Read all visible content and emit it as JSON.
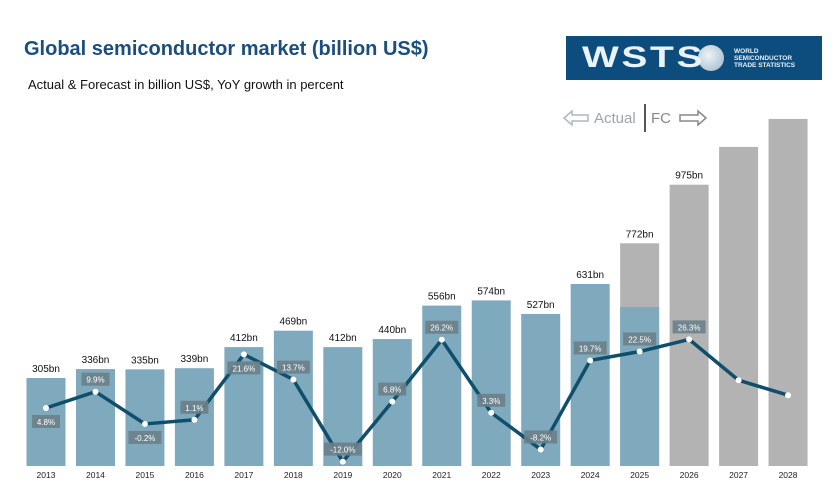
{
  "header": {
    "title": "Global semiconductor market (billion US$)",
    "subtitle": "Actual & Forecast in billion US$, YoY growth in percent"
  },
  "logo": {
    "text": "WSTS",
    "org_lines": [
      "WORLD",
      "SEMICONDUCTOR",
      "TRADE STATISTICS"
    ]
  },
  "legend": {
    "actual": "Actual",
    "forecast": "FC"
  },
  "colors": {
    "actual_bar": "#7fa9bd",
    "forecast_bar": "#b3b3b3",
    "growth_line": "#0f4f6b",
    "growth_label_bg": "#6b7f8a"
  },
  "chart_data": {
    "type": "bar",
    "title": "Global semiconductor market (billion US$)",
    "subtitle": "Actual & Forecast in billion US$, YoY growth in percent",
    "categories": [
      "2013",
      "2014",
      "2015",
      "2016",
      "2017",
      "2018",
      "2019",
      "2020",
      "2021",
      "2022",
      "2023",
      "2024",
      "2025",
      "2026",
      "2027",
      "2028"
    ],
    "series": [
      {
        "type": "bar",
        "values": [
          305,
          336,
          335,
          339,
          412,
          469,
          412,
          440,
          556,
          574,
          527,
          631,
          772,
          975,
          1106,
          1203
        ],
        "labels": [
          "305bn",
          "336bn",
          "335bn",
          "339bn",
          "412bn",
          "469bn",
          "412bn",
          "440bn",
          "556bn",
          "574bn",
          "527bn",
          "631bn",
          "772bn",
          "975bn",
          "",
          ""
        ],
        "status": [
          "actual",
          "actual",
          "actual",
          "actual",
          "actual",
          "actual",
          "actual",
          "actual",
          "actual",
          "actual",
          "actual",
          "actual",
          "partial",
          "forecast",
          "forecast",
          "forecast"
        ],
        "partial_actual_2025": 551
      },
      {
        "type": "line",
        "values": [
          4.8,
          9.9,
          -0.2,
          1.1,
          21.6,
          13.7,
          -12.0,
          6.8,
          26.2,
          3.3,
          -8.2,
          19.7,
          22.5,
          26.3,
          13.5,
          8.8
        ],
        "labels": [
          "4.8%",
          "9.9%",
          "-0.2%",
          "1.1%",
          "21.6%",
          "13.7%",
          "-12.0%",
          "6.8%",
          "26.2%",
          "3.3%",
          "-8.2%",
          "19.7%",
          "22.5%",
          "26.3%",
          "",
          ""
        ],
        "label_pos": [
          "below",
          "above",
          "below",
          "above",
          "below",
          "above",
          "above",
          "above",
          "above",
          "above",
          "above",
          "above",
          "above",
          "above",
          "",
          ""
        ]
      }
    ],
    "ylim": [
      0,
      1250
    ],
    "grid": false,
    "legend": "top-right"
  }
}
